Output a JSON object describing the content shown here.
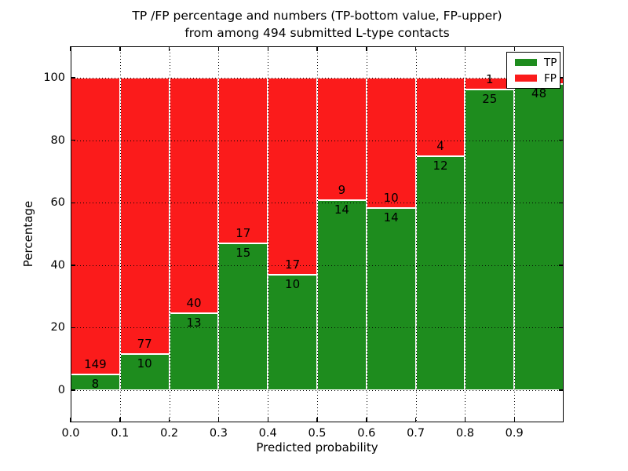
{
  "title": {
    "line1": "TP /FP percentage and numbers (TP-bottom value, FP-upper)",
    "line2": "from among 494 submitted L-type contacts"
  },
  "axes": {
    "ylabel": "Percentage",
    "xlabel": "Predicted probability",
    "yticks": [
      "0",
      "20",
      "40",
      "60",
      "80",
      "100"
    ],
    "ytick_values": [
      0,
      20,
      40,
      60,
      80,
      100
    ],
    "xticks": [
      "0.0",
      "0.1",
      "0.2",
      "0.3",
      "0.4",
      "0.5",
      "0.6",
      "0.7",
      "0.8",
      "0.9"
    ],
    "xtick_values": [
      0.0,
      0.1,
      0.2,
      0.3,
      0.4,
      0.5,
      0.6,
      0.7,
      0.8,
      0.9
    ],
    "ylim": [
      -10,
      110
    ],
    "xlim": [
      0.0,
      1.0
    ],
    "grid": true,
    "grid_style": "dotted"
  },
  "legend": {
    "position": "upper right",
    "items": [
      {
        "label": "TP",
        "color": "#1e8c1e"
      },
      {
        "label": "FP",
        "color": "#fb1b1b"
      }
    ]
  },
  "chart_data": {
    "type": "bar",
    "stacked": true,
    "normalized_to_percent": 100,
    "title": "TP /FP percentage and numbers (TP-bottom value, FP-upper) from among 494 submitted L-type contacts",
    "xlabel": "Predicted probability",
    "ylabel": "Percentage",
    "total_submitted": 494,
    "bin_width": 0.1,
    "bin_starts": [
      0.0,
      0.1,
      0.2,
      0.3,
      0.4,
      0.5,
      0.6,
      0.7,
      0.8,
      0.9
    ],
    "series": [
      {
        "name": "TP",
        "color": "#1e8c1e",
        "counts": [
          8,
          10,
          13,
          15,
          10,
          14,
          14,
          12,
          25,
          48
        ]
      },
      {
        "name": "FP",
        "color": "#fb1b1b",
        "counts": [
          149,
          77,
          40,
          17,
          17,
          9,
          10,
          4,
          1,
          1
        ]
      }
    ],
    "tp_percent": [
      5.1,
      11.5,
      24.5,
      46.9,
      37.0,
      60.9,
      58.3,
      75.0,
      96.2,
      98.0
    ],
    "legend_position": "upper right"
  }
}
